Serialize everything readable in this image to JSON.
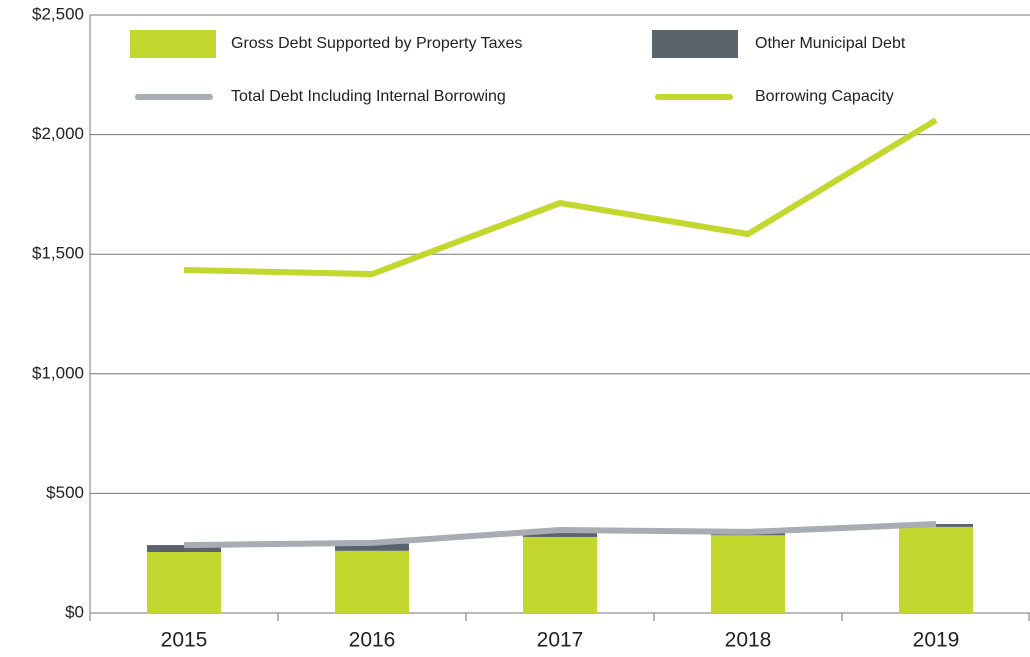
{
  "chart_data": {
    "type": "bar",
    "categories": [
      "2015",
      "2016",
      "2017",
      "2018",
      "2019"
    ],
    "series": [
      {
        "name": "Gross Debt Supported by Property Taxes",
        "type": "bar",
        "color": "#c2d82e",
        "values": [
          255,
          260,
          318,
          325,
          360
        ]
      },
      {
        "name": "Other Municipal Debt",
        "type": "bar",
        "color": "#58636b",
        "values": [
          29,
          30,
          30,
          13,
          12
        ]
      },
      {
        "name": "Total Debt Including Internal Borrowing",
        "type": "line",
        "color": "#a7adb3",
        "values": [
          284,
          293,
          347,
          339,
          372
        ]
      },
      {
        "name": "Borrowing Capacity",
        "type": "line",
        "color": "#c2d82e",
        "values": [
          1434,
          1417,
          1714,
          1584,
          2061
        ]
      }
    ],
    "ylim": [
      0,
      2500
    ],
    "yticks": [
      {
        "value": 0,
        "label": "$0"
      },
      {
        "value": 500,
        "label": "$500"
      },
      {
        "value": 1000,
        "label": "$1,000"
      },
      {
        "value": 1500,
        "label": "$1,500"
      },
      {
        "value": 2000,
        "label": "$2,000"
      },
      {
        "value": 2500,
        "label": "$2,500"
      }
    ],
    "grid": true
  }
}
